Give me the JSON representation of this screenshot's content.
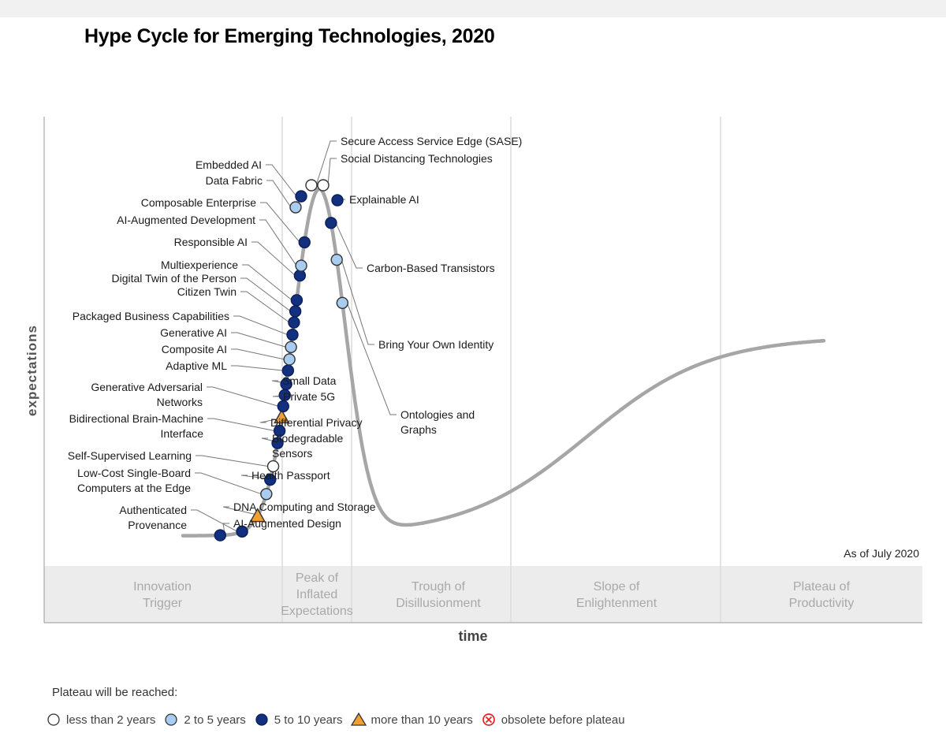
{
  "title": "Hype Cycle for Emerging Technologies, 2020",
  "note": "As of July 2020",
  "chart_data": {
    "type": "scatter",
    "title": "Hype Cycle for Emerging Technologies, 2020",
    "xlabel": "time",
    "ylabel": "expectations",
    "phases": [
      {
        "name": "Innovation Trigger",
        "lines": [
          "Innovation",
          "Trigger"
        ]
      },
      {
        "name": "Peak of Inflated Expectations",
        "lines": [
          "Peak of",
          "Inflated",
          "Expectations"
        ]
      },
      {
        "name": "Trough of Disillusionment",
        "lines": [
          "Trough of",
          "Disillusionment"
        ]
      },
      {
        "name": "Slope of Enlightenment",
        "lines": [
          "Slope of",
          "Enlightenment"
        ]
      },
      {
        "name": "Plateau of Productivity",
        "lines": [
          "Plateau of",
          "Productivity"
        ]
      }
    ],
    "categories": [
      {
        "key": "lt2",
        "label": "less than 2 years",
        "color": "#ffffff"
      },
      {
        "key": "2to5",
        "label": "2 to 5 years",
        "color": "#a9cdf0"
      },
      {
        "key": "5to10",
        "label": "5 to 10 years",
        "color": "#12307e"
      },
      {
        "key": "gt10",
        "label": "more than 10 years",
        "color": "#f0a030"
      },
      {
        "key": "obsolete",
        "label": "obsolete before plateau",
        "color": "#e02020"
      }
    ],
    "technologies": [
      {
        "name": "AI-Augmented Design",
        "lines": [
          "AI-Augmented Design"
        ],
        "cat": "5to10",
        "t": 0.03,
        "side": "right"
      },
      {
        "name": "Authenticated Provenance",
        "lines": [
          "Authenticated",
          "Provenance"
        ],
        "cat": "5to10",
        "t": 0.048,
        "side": "left"
      },
      {
        "name": "DNA Computing and Storage",
        "lines": [
          "DNA Computing and Storage"
        ],
        "cat": "gt10",
        "t": 0.066,
        "side": "right"
      },
      {
        "name": "Low-Cost Single-Board Computers at the Edge",
        "lines": [
          "Low-Cost Single-Board",
          "Computers at the Edge"
        ],
        "cat": "2to5",
        "t": 0.085,
        "side": "left"
      },
      {
        "name": "Health Passport",
        "lines": [
          "Health Passport"
        ],
        "cat": "5to10",
        "t": 0.097,
        "side": "right"
      },
      {
        "name": "Self-Supervised Learning",
        "lines": [
          "Self-Supervised Learning"
        ],
        "cat": "lt2",
        "t": 0.108,
        "side": "left"
      },
      {
        "name": "Biodegradable Sensors",
        "lines": [
          "Biodegradable",
          "Sensors"
        ],
        "cat": "5to10",
        "t": 0.127,
        "side": "right"
      },
      {
        "name": "Bidirectional Brain-Machine Interface",
        "lines": [
          "Bidirectional Brain-Machine",
          "Interface"
        ],
        "cat": "5to10",
        "t": 0.137,
        "side": "left"
      },
      {
        "name": "Differential Privacy",
        "lines": [
          "Differential Privacy"
        ],
        "cat": "gt10",
        "t": 0.148,
        "side": "right"
      },
      {
        "name": "Generative Adversarial Networks",
        "lines": [
          "Generative Adversarial",
          "Networks"
        ],
        "cat": "5to10",
        "t": 0.157,
        "side": "left"
      },
      {
        "name": "Private 5G",
        "lines": [
          "Private 5G"
        ],
        "cat": "5to10",
        "t": 0.166,
        "side": "right"
      },
      {
        "name": "Small Data",
        "lines": [
          "Small Data"
        ],
        "cat": "5to10",
        "t": 0.175,
        "side": "right"
      },
      {
        "name": "Adaptive ML",
        "lines": [
          "Adaptive ML"
        ],
        "cat": "5to10",
        "t": 0.186,
        "side": "left"
      },
      {
        "name": "Composite AI",
        "lines": [
          "Composite AI"
        ],
        "cat": "2to5",
        "t": 0.195,
        "side": "left"
      },
      {
        "name": "Generative AI",
        "lines": [
          "Generative AI"
        ],
        "cat": "2to5",
        "t": 0.205,
        "side": "left"
      },
      {
        "name": "Packaged Business Capabilities",
        "lines": [
          "Packaged Business Capabilities"
        ],
        "cat": "5to10",
        "t": 0.215,
        "side": "left"
      },
      {
        "name": "Citizen Twin",
        "lines": [
          "Citizen Twin"
        ],
        "cat": "5to10",
        "t": 0.225,
        "side": "left"
      },
      {
        "name": "Digital Twin of the Person",
        "lines": [
          "Digital Twin of the Person"
        ],
        "cat": "5to10",
        "t": 0.234,
        "side": "left"
      },
      {
        "name": "Multiexperience",
        "lines": [
          "Multiexperience"
        ],
        "cat": "5to10",
        "t": 0.243,
        "side": "left"
      },
      {
        "name": "Responsible AI",
        "lines": [
          "Responsible AI"
        ],
        "cat": "5to10",
        "t": 0.263,
        "side": "left"
      },
      {
        "name": "AI-Augmented Development",
        "lines": [
          "AI-Augmented Development"
        ],
        "cat": "2to5",
        "t": 0.271,
        "side": "left"
      },
      {
        "name": "Composable Enterprise",
        "lines": [
          "Composable Enterprise"
        ],
        "cat": "5to10",
        "t": 0.29,
        "side": "left"
      },
      {
        "name": "Data Fabric",
        "lines": [
          "Data Fabric"
        ],
        "cat": "2to5",
        "t": 0.302,
        "side": "left"
      },
      {
        "name": "Embedded AI",
        "lines": [
          "Embedded AI"
        ],
        "cat": "5to10",
        "t": 0.314,
        "side": "left"
      },
      {
        "name": "Secure Access Service Edge (SASE)",
        "lines": [
          "Secure Access Service Edge (SASE)"
        ],
        "cat": "lt2",
        "t": 0.326,
        "side": "right"
      },
      {
        "name": "Social Distancing Technologies",
        "lines": [
          "Social Distancing Technologies"
        ],
        "cat": "lt2",
        "t": 0.326,
        "side": "right"
      },
      {
        "name": "Explainable AI",
        "lines": [
          "Explainable AI"
        ],
        "cat": "5to10",
        "t": 0.34,
        "side": "right"
      },
      {
        "name": "Carbon-Based Transistors",
        "lines": [
          "Carbon-Based Transistors"
        ],
        "cat": "5to10",
        "t": 0.365,
        "side": "right"
      },
      {
        "name": "Bring Your Own Identity",
        "lines": [
          "Bring Your Own Identity"
        ],
        "cat": "2to5",
        "t": 0.395,
        "side": "right"
      },
      {
        "name": "Ontologies and Graphs",
        "lines": [
          "Ontologies and",
          "Graphs"
        ],
        "cat": "2to5",
        "t": 0.43,
        "side": "right"
      }
    ],
    "legend_title": "Plateau will be reached:",
    "legend_position": "bottom-left",
    "grid": false
  }
}
